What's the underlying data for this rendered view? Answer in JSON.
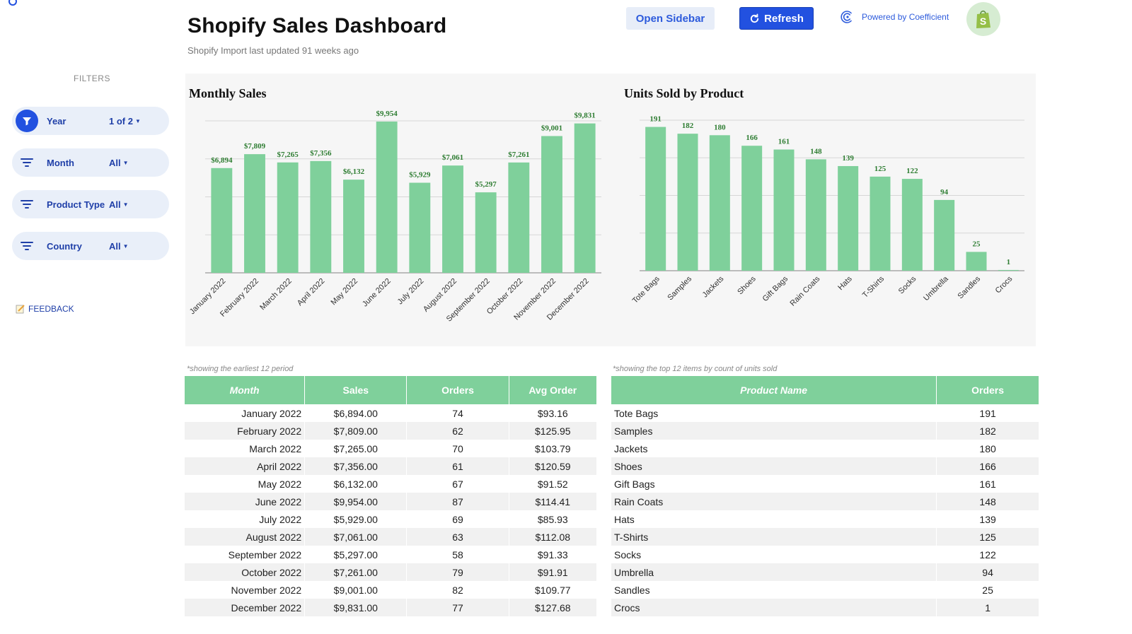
{
  "header": {
    "title": "Shopify Sales Dashboard",
    "subtitle": "Shopify Import last updated 91 weeks ago",
    "open_sidebar_label": "Open Sidebar",
    "refresh_label": "Refresh",
    "powered_by_label": "Powered by Coefficient"
  },
  "sidebar": {
    "filters_label": "FILTERS",
    "filters": [
      {
        "name": "Year",
        "value": "1 of 2"
      },
      {
        "name": "Month",
        "value": "All"
      },
      {
        "name": "Product Type",
        "value": "All"
      },
      {
        "name": "Country",
        "value": "All"
      }
    ],
    "feedback_label": "FEEDBACK"
  },
  "colors": {
    "accent": "#2251e0",
    "bar": "#7fd09b",
    "label_green": "#2e7d32"
  },
  "chart_data": [
    {
      "type": "bar",
      "title": "Monthly Sales",
      "categories": [
        "January 2022",
        "February 2022",
        "March 2022",
        "April 2022",
        "May 2022",
        "June 2022",
        "July 2022",
        "August 2022",
        "September 2022",
        "October 2022",
        "November 2022",
        "December 2022"
      ],
      "values": [
        6894,
        7809,
        7265,
        7356,
        6132,
        9954,
        5929,
        7061,
        5297,
        7261,
        9001,
        9831
      ],
      "data_labels": [
        "$6,894",
        "$7,809",
        "$7,265",
        "$7,356",
        "$6,132",
        "$9,954",
        "$5,929",
        "$7,061",
        "$5,297",
        "$7,261",
        "$9,001",
        "$9,831"
      ],
      "ylim": [
        0,
        10000
      ],
      "grid": true,
      "legend": "none"
    },
    {
      "type": "bar",
      "title": "Units Sold by Product",
      "categories": [
        "Tote Bags",
        "Samples",
        "Jackets",
        "Shoes",
        "Gift Bags",
        "Rain Coats",
        "Hats",
        "T-Shirts",
        "Socks",
        "Umbrella",
        "Sandles",
        "Crocs"
      ],
      "values": [
        191,
        182,
        180,
        166,
        161,
        148,
        139,
        125,
        122,
        94,
        25,
        1
      ],
      "data_labels": [
        "191",
        "182",
        "180",
        "166",
        "161",
        "148",
        "139",
        "125",
        "122",
        "94",
        "25",
        "1"
      ],
      "ylim": [
        0,
        200
      ],
      "grid": true,
      "legend": "none"
    }
  ],
  "sales_table": {
    "note": "*showing the earliest 12 period",
    "columns": [
      "Month",
      "Sales",
      "Orders",
      "Avg Order"
    ],
    "rows": [
      [
        "January 2022",
        "$6,894.00",
        "74",
        "$93.16"
      ],
      [
        "February 2022",
        "$7,809.00",
        "62",
        "$125.95"
      ],
      [
        "March 2022",
        "$7,265.00",
        "70",
        "$103.79"
      ],
      [
        "April 2022",
        "$7,356.00",
        "61",
        "$120.59"
      ],
      [
        "May 2022",
        "$6,132.00",
        "67",
        "$91.52"
      ],
      [
        "June 2022",
        "$9,954.00",
        "87",
        "$114.41"
      ],
      [
        "July 2022",
        "$5,929.00",
        "69",
        "$85.93"
      ],
      [
        "August 2022",
        "$7,061.00",
        "63",
        "$112.08"
      ],
      [
        "September 2022",
        "$5,297.00",
        "58",
        "$91.33"
      ],
      [
        "October 2022",
        "$7,261.00",
        "79",
        "$91.91"
      ],
      [
        "November 2022",
        "$9,001.00",
        "82",
        "$109.77"
      ],
      [
        "December 2022",
        "$9,831.00",
        "77",
        "$127.68"
      ]
    ]
  },
  "product_table": {
    "note": "*showing the top 12 items by count of units sold",
    "columns": [
      "Product Name",
      "Orders"
    ],
    "rows": [
      [
        "Tote Bags",
        "191"
      ],
      [
        "Samples",
        "182"
      ],
      [
        "Jackets",
        "180"
      ],
      [
        "Shoes",
        "166"
      ],
      [
        "Gift Bags",
        "161"
      ],
      [
        "Rain Coats",
        "148"
      ],
      [
        "Hats",
        "139"
      ],
      [
        "T-Shirts",
        "125"
      ],
      [
        "Socks",
        "122"
      ],
      [
        "Umbrella",
        "94"
      ],
      [
        "Sandles",
        "25"
      ],
      [
        "Crocs",
        "1"
      ]
    ]
  }
}
